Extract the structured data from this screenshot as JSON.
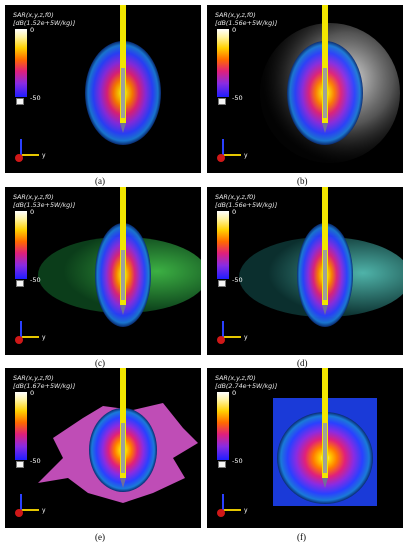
{
  "panels": [
    {
      "id": "a",
      "line1": "SAR(x,y,z,f0)",
      "line2": "[dB(1.52e+5W/kg)]",
      "max": "0",
      "min": "-50",
      "axis": "y",
      "caption": "(a)"
    },
    {
      "id": "b",
      "line1": "SAR(x,y,z,f0)",
      "line2": "[dB(1.56e+5W/kg)]",
      "max": "0",
      "min": "-50",
      "axis": "y",
      "caption": "(b)"
    },
    {
      "id": "c",
      "line1": "SAR(x,y,z,f0)",
      "line2": "[dB(1.53e+5W/kg)]",
      "max": "0",
      "min": "-50",
      "axis": "y",
      "caption": "(c)"
    },
    {
      "id": "d",
      "line1": "SAR(x,y,z,f0)",
      "line2": "[dB(1.56e+5W/kg)]",
      "max": "0",
      "min": "-50",
      "axis": "y",
      "caption": "(d)"
    },
    {
      "id": "e",
      "line1": "SAR(x,y,z,f0)",
      "line2": "[dB(1.67e+5W/kg)]",
      "max": "0",
      "min": "-50",
      "axis": "y",
      "caption": "(e)"
    },
    {
      "id": "f",
      "line1": "SAR(x,y,z,f0)",
      "line2": "[dB(2.74e+5W/kg)]",
      "max": "0",
      "min": "-50",
      "axis": "y",
      "caption": "(f)"
    }
  ],
  "colors": {
    "probe": "#f2e600",
    "background": "#000000",
    "phantom_b": "#d9d9d9",
    "phantom_c": "#3cb043",
    "phantom_d": "#4fb3a9",
    "phantom_e": "#e05ad6"
  }
}
